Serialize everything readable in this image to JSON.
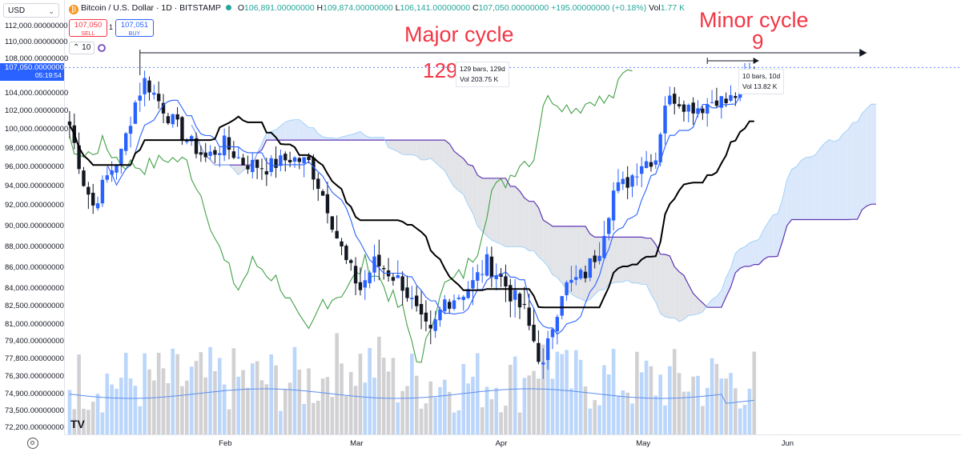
{
  "header": {
    "symbol_icon": "bitcoin-icon",
    "symbol_glyph": "₿",
    "title": "Bitcoin / U.S. Dollar · 1D · BITSTAMP",
    "status_color": "#26a69a",
    "o_label": "O",
    "o": "106,891.00000000",
    "h_label": "H",
    "h": "109,874.00000000",
    "l_label": "L",
    "l": "106,141.00000000",
    "c_label": "C",
    "c": "107,050.00000000",
    "change": "+195.00000000 (+0.18%)",
    "vol_label": "Vol",
    "vol": "1.77 K"
  },
  "trade": {
    "sell_price": "107,050",
    "sell_label": "SELL",
    "spread": "1",
    "buy_price": "107,051",
    "buy_label": "BUY"
  },
  "indicators": {
    "count": "10",
    "spinner_icon": "loading-icon"
  },
  "price_scale": {
    "currency": "USD",
    "ticks": [
      {
        "label": "112,000.00000000",
        "v": 112000
      },
      {
        "label": "110,000.00000000",
        "v": 110000
      },
      {
        "label": "108,000.00000000",
        "v": 108000
      },
      {
        "label": "104,000.00000000",
        "v": 104000
      },
      {
        "label": "102,000.00000000",
        "v": 102000
      },
      {
        "label": "100,000.00000000",
        "v": 100000
      },
      {
        "label": "98,000.00000000",
        "v": 98000
      },
      {
        "label": "96,000.00000000",
        "v": 96000
      },
      {
        "label": "94,000.00000000",
        "v": 94000
      },
      {
        "label": "92,000.00000000",
        "v": 92000
      },
      {
        "label": "90,000.00000000",
        "v": 90000
      },
      {
        "label": "88,000.00000000",
        "v": 88000
      },
      {
        "label": "86,000.00000000",
        "v": 86000
      },
      {
        "label": "84,000.00000000",
        "v": 84000
      },
      {
        "label": "82,500.00000000",
        "v": 82500
      },
      {
        "label": "81,000.00000000",
        "v": 81000
      },
      {
        "label": "79,400.00000000",
        "v": 79400
      },
      {
        "label": "77,800.00000000",
        "v": 77800
      },
      {
        "label": "76,300.00000000",
        "v": 76300
      },
      {
        "label": "74,900.00000000",
        "v": 74900
      },
      {
        "label": "73,500.00000000",
        "v": 73500
      },
      {
        "label": "72,200.00000000",
        "v": 72200
      }
    ],
    "current_price": "107,050.00000000",
    "countdown": "05:19:54"
  },
  "time_axis": [
    {
      "label": "Feb",
      "d": 34
    },
    {
      "label": "Mar",
      "d": 62
    },
    {
      "label": "Apr",
      "d": 93
    },
    {
      "label": "May",
      "d": 123
    },
    {
      "label": "Jun",
      "d": 154
    }
  ],
  "annotations": {
    "major_cycle": "Major cycle",
    "major_count": "129",
    "major_bars": "129 bars, 129d",
    "major_vol": "Vol 203.75 K",
    "minor_cycle": "Minor cycle",
    "minor_count": "9",
    "minor_bars": "10 bars, 10d",
    "minor_vol": "Vol 13.82 K"
  },
  "colors": {
    "up": "#2962ff",
    "down": "#131722",
    "tenkan": "#2962ff",
    "kijun": "#000000",
    "chikou": "#43a047",
    "senkou_b": "#5e35b1",
    "cloud_bull": "#dbe8fb",
    "cloud_bear": "#e3e4e8",
    "annotation": "#f23645"
  },
  "logo": "TV"
}
